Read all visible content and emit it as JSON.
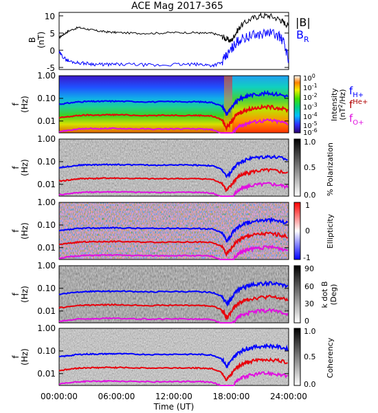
{
  "title": "ACE Mag 2017-365",
  "colors": {
    "black": "#000000",
    "blue": "#0000ff",
    "red": "#e8000b",
    "magenta": "#e010e0",
    "darkred": "#b00000"
  },
  "chart_data": {
    "type": "line",
    "title": "ACE Mag 2017-365",
    "xlabel": "Time (UT)",
    "x_ticks": [
      "00:00:00",
      "06:00:00",
      "12:00:00",
      "18:00:00",
      "24:00:00"
    ],
    "x_range_hours": [
      0,
      24
    ],
    "top_panel": {
      "ylabel": "B (nT)",
      "y_ticks": [
        "10",
        "5",
        "0",
        "-5"
      ],
      "ylim": [
        -6,
        11
      ],
      "legend": [
        {
          "name": "|B|",
          "color": "#000000"
        },
        {
          "name": "B_R",
          "color": "#0000ff"
        }
      ],
      "series": [
        {
          "name": "|B|",
          "hours": [
            0,
            0.5,
            1,
            2,
            3,
            4,
            5,
            6,
            8,
            10,
            12,
            14,
            15,
            16,
            17,
            17.5,
            18,
            18.5,
            19,
            20,
            21,
            22,
            23,
            23.5,
            24
          ],
          "values": [
            3.5,
            4.5,
            5.5,
            6.5,
            6,
            5.5,
            5.2,
            5,
            4.8,
            4.8,
            5,
            5,
            4.8,
            4.8,
            4,
            3,
            2.5,
            5,
            7,
            9,
            10,
            10,
            9,
            8,
            7
          ]
        },
        {
          "name": "B_R",
          "hours": [
            0,
            0.5,
            1,
            2,
            3,
            4,
            5,
            6,
            8,
            10,
            12,
            14,
            15,
            16,
            17,
            17.5,
            18,
            18.5,
            19,
            20,
            21,
            22,
            23,
            23.5,
            24
          ],
          "values": [
            -1,
            -2.5,
            -3.5,
            -4,
            -4.2,
            -4.5,
            -4.5,
            -4.5,
            -4.5,
            -4.8,
            -4.5,
            -4.5,
            -4.5,
            -4.8,
            -4,
            -2,
            0,
            2,
            3,
            4,
            4.5,
            5,
            4,
            2,
            -3
          ]
        }
      ]
    },
    "spectrogram_panels": [
      {
        "id": "intensity",
        "ylabel": "f (Hz)",
        "colorbar_label": "Intensity (nT^2/Hz)",
        "colorbar_ticks": [
          "10^0",
          "10^-1",
          "10^-2",
          "10^-3",
          "10^-4",
          "10^-5",
          "10^-6"
        ],
        "colormap": "rainbow"
      },
      {
        "id": "polarization",
        "ylabel": "f (Hz)",
        "colorbar_label": "% Polarization",
        "colorbar_ticks": [
          "1.0",
          "0.5",
          "0.0"
        ],
        "colormap": "grayscale"
      },
      {
        "id": "ellipticity",
        "ylabel": "f (Hz)",
        "colorbar_label": "Ellipticity",
        "colorbar_ticks": [
          "1",
          "0",
          "-1"
        ],
        "colormap": "bluewhitered"
      },
      {
        "id": "kdotb",
        "ylabel": "f (Hz)",
        "colorbar_label": "k dot B (Deg)",
        "colorbar_ticks": [
          "90",
          "60",
          "30",
          "0"
        ],
        "colormap": "grayscale"
      },
      {
        "id": "coherency",
        "ylabel": "f (Hz)",
        "colorbar_label": "Coherency",
        "colorbar_ticks": [
          "1.0",
          "0.5",
          "0.0"
        ],
        "colormap": "grayscale"
      }
    ],
    "freq_ticks": [
      "1.00",
      "0.10",
      "0.01"
    ],
    "freq_range_hz": [
      0.003,
      1.0
    ],
    "gyro_legend": [
      {
        "name": "f_H+",
        "color": "#0000ff"
      },
      {
        "name": "f_He+",
        "color": "#e8000b"
      },
      {
        "name": "f_O+",
        "color": "#e010e0"
      }
    ],
    "gyro_lines": {
      "hours": [
        0,
        1,
        2,
        3,
        4,
        5,
        6,
        8,
        10,
        12,
        14,
        15,
        16,
        17,
        17.5,
        18,
        18.5,
        19,
        19.5,
        20,
        21,
        22,
        23,
        24
      ],
      "fH_hz": [
        0.055,
        0.062,
        0.07,
        0.073,
        0.073,
        0.075,
        0.075,
        0.072,
        0.07,
        0.072,
        0.071,
        0.07,
        0.066,
        0.045,
        0.02,
        0.035,
        0.07,
        0.1,
        0.12,
        0.14,
        0.16,
        0.17,
        0.15,
        0.12
      ]
    }
  },
  "labels": {
    "B": "B",
    "nT": "(nT)",
    "f": "f",
    "Hz": "(Hz)",
    "absB": "|B|",
    "BR_base": "B",
    "BR_sub": "R",
    "fH_base": "f",
    "fH_sub": "H+",
    "fHe_base": "f",
    "fHe_sup": "He+",
    "fO_base": "f",
    "fO_sub": "O+",
    "intensity": "Intensity",
    "intensity_unit_a": "(nT",
    "intensity_unit_b": "/Hz)",
    "pol": "% Polarization",
    "ell": "Ellipticity",
    "kdb": "k dot B",
    "kdb_unit": "(Deg)",
    "coh": "Coherency"
  }
}
